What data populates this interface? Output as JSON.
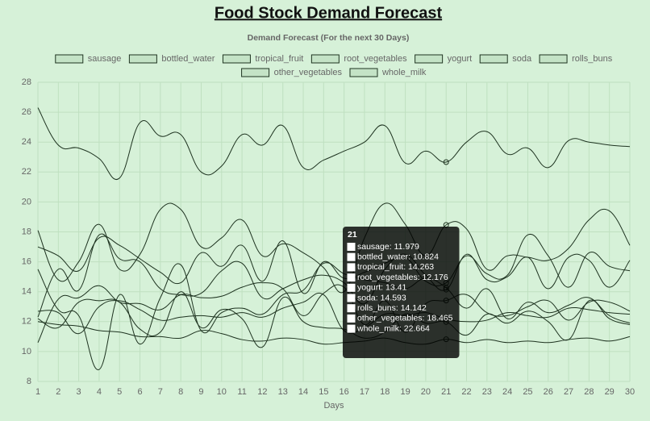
{
  "chart_data": {
    "type": "line",
    "title": "Food Stock Demand Forecast",
    "subtitle": "Demand Forecast (For the next 30 Days)",
    "x_label": "Days",
    "categories": [
      1,
      2,
      3,
      4,
      5,
      6,
      7,
      8,
      9,
      10,
      11,
      12,
      13,
      14,
      15,
      16,
      17,
      18,
      19,
      20,
      21,
      22,
      23,
      24,
      25,
      26,
      27,
      28,
      29,
      30
    ],
    "ylim": [
      8,
      28
    ],
    "yticks": [
      8,
      10,
      12,
      14,
      16,
      18,
      20,
      22,
      24,
      26,
      28
    ],
    "grid": true,
    "legend": "top",
    "series": [
      {
        "name": "sausage",
        "color": "#1e3320",
        "values": [
          12.2,
          11.6,
          13.3,
          13.4,
          13.3,
          11.5,
          11.3,
          14.0,
          11.6,
          12.8,
          12.2,
          10.3,
          13.6,
          12.0,
          11.6,
          11.5,
          10.9,
          11.3,
          12.5,
          11.9,
          11.979,
          11.1,
          12.5,
          11.9,
          12.7,
          12.0,
          10.8,
          13.4,
          12.2,
          11.8
        ]
      },
      {
        "name": "bottled_water",
        "color": "#1e3320",
        "values": [
          12.0,
          11.8,
          11.7,
          11.4,
          11.3,
          11.0,
          11.0,
          10.9,
          11.4,
          11.2,
          10.8,
          10.7,
          10.9,
          10.8,
          10.5,
          10.6,
          10.7,
          10.9,
          10.6,
          10.5,
          10.824,
          10.6,
          10.8,
          10.6,
          10.7,
          10.6,
          10.8,
          10.9,
          10.7,
          11.0
        ]
      },
      {
        "name": "tropical_fruit",
        "color": "#1e3320",
        "values": [
          15.5,
          12.8,
          12.4,
          8.8,
          13.8,
          10.5,
          13.6,
          15.8,
          11.4,
          12.6,
          12.9,
          12.5,
          13.8,
          14.1,
          15.9,
          15.2,
          14.8,
          14.6,
          14.2,
          14.9,
          14.263,
          12.9,
          14.2,
          12.2,
          13.3,
          12.6,
          13.1,
          13.6,
          12.4,
          11.9
        ]
      },
      {
        "name": "root_vegetables",
        "color": "#1e3320",
        "values": [
          12.7,
          12.6,
          11.2,
          13.0,
          13.4,
          12.8,
          12.1,
          12.3,
          12.4,
          12.3,
          12.6,
          12.3,
          12.9,
          13.3,
          13.8,
          11.4,
          11.6,
          12.5,
          12.4,
          12.6,
          12.176,
          12.0,
          12.1,
          12.6,
          12.4,
          12.3,
          12.9,
          12.8,
          12.6,
          12.5
        ]
      },
      {
        "name": "yogurt",
        "color": "#1e3320",
        "values": [
          10.6,
          13.5,
          13.6,
          14.4,
          13.3,
          13.2,
          12.8,
          13.8,
          13.6,
          13.7,
          14.3,
          14.6,
          14.2,
          12.4,
          13.9,
          14.3,
          11.8,
          13.4,
          11.3,
          13.2,
          13.41,
          13.8,
          12.6,
          12.4,
          13.0,
          13.4,
          12.1,
          13.3,
          13.3,
          12.7
        ]
      },
      {
        "name": "soda",
        "color": "#1e3320",
        "values": [
          17.0,
          16.4,
          15.4,
          17.6,
          17.1,
          16.2,
          15.3,
          14.6,
          16.6,
          15.7,
          17.1,
          14.7,
          17.4,
          13.9,
          16.0,
          14.9,
          15.3,
          15.9,
          16.3,
          14.7,
          14.593,
          16.4,
          15.2,
          15.1,
          17.8,
          16.4,
          14.3,
          16.6,
          15.7,
          15.4
        ]
      },
      {
        "name": "rolls_buns",
        "color": "#1e3320",
        "values": [
          12.3,
          15.5,
          14.1,
          17.8,
          16.2,
          16.0,
          14.2,
          13.8,
          13.9,
          15.4,
          15.9,
          13.6,
          14.2,
          14.8,
          15.1,
          14.6,
          13.2,
          15.5,
          16.5,
          15.1,
          14.142,
          16.5,
          14.8,
          15.0,
          16.3,
          14.2,
          16.3,
          16.1,
          14.3,
          16.1
        ]
      },
      {
        "name": "other_vegetables",
        "color": "#1e3320",
        "values": [
          18.1,
          14.8,
          16.0,
          18.5,
          15.5,
          16.5,
          19.5,
          19.5,
          17.0,
          17.6,
          18.8,
          16.4,
          17.2,
          16.6,
          15.6,
          14.0,
          17.6,
          19.9,
          18.5,
          16.4,
          18.465,
          18.2,
          15.5,
          16.4,
          16.3,
          16.1,
          16.9,
          18.8,
          19.4,
          17.1
        ]
      },
      {
        "name": "whole_milk",
        "color": "#1e3320",
        "values": [
          26.3,
          23.8,
          23.6,
          22.9,
          21.6,
          25.3,
          24.4,
          24.5,
          22.0,
          22.4,
          24.5,
          23.8,
          25.1,
          22.3,
          22.8,
          23.4,
          24.0,
          25.1,
          22.6,
          23.4,
          22.664,
          24.0,
          24.7,
          23.2,
          23.6,
          22.3,
          24.1,
          24.0,
          23.8,
          23.7
        ]
      }
    ],
    "tooltip": {
      "index": 20,
      "title": "21",
      "items": [
        "sausage: 11.979",
        "bottled_water: 10.824",
        "tropical_fruit: 14.263",
        "root_vegetables: 12.176",
        "yogurt: 13.41",
        "soda: 14.593",
        "rolls_buns: 14.142",
        "other_vegetables: 18.465",
        "whole_milk: 22.664"
      ]
    }
  }
}
